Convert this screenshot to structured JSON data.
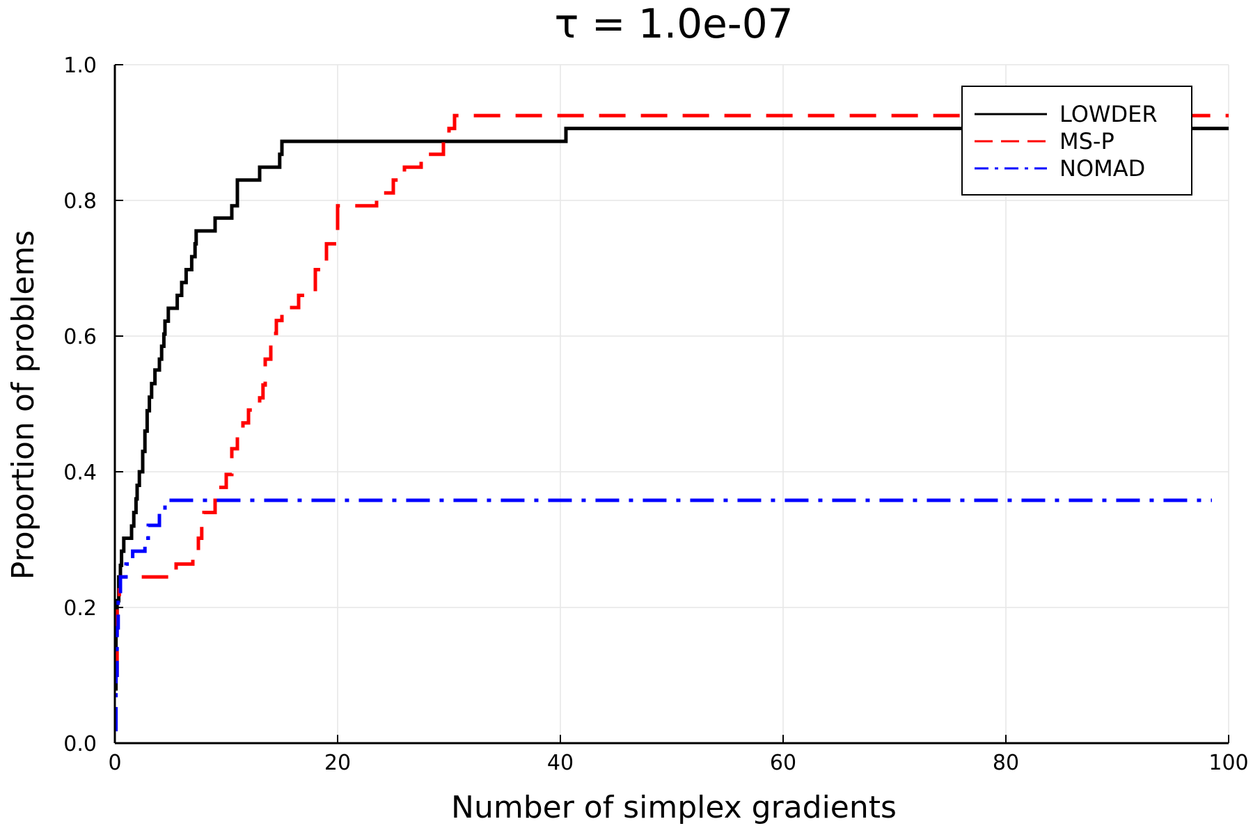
{
  "chart_data": {
    "type": "line",
    "title": "τ = 1.0e-07",
    "xlabel": "Number of simplex gradients",
    "ylabel": "Proportion of problems",
    "xlim": [
      0,
      100
    ],
    "ylim": [
      0,
      1
    ],
    "xticks": [
      0,
      20,
      40,
      60,
      80,
      100
    ],
    "xtick_labels": [
      "0",
      "20",
      "40",
      "60",
      "80",
      "100"
    ],
    "yticks": [
      0,
      0.2,
      0.4,
      0.6,
      0.8,
      1.0
    ],
    "ytick_labels": [
      "0.0",
      "0.2",
      "0.4",
      "0.6",
      "0.8",
      "1.0"
    ],
    "grid": true,
    "legend_position": "top-right",
    "series": [
      {
        "name": "LOWDER",
        "color": "#000000",
        "dash": "solid",
        "x": [
          0,
          0.1,
          0.2,
          0.35,
          0.5,
          0.6,
          0.8,
          1.0,
          1.5,
          1.7,
          1.9,
          2.0,
          2.2,
          2.5,
          2.7,
          2.9,
          3.1,
          3.3,
          3.6,
          4.0,
          4.2,
          4.4,
          4.5,
          4.8,
          5.0,
          5.6,
          6.0,
          6.4,
          6.9,
          7.2,
          7.3,
          8.0,
          9.0,
          10.0,
          10.5,
          11.0,
          12.7,
          13.0,
          14.5,
          14.8,
          15.0,
          30.0,
          40.5,
          100
        ],
        "y": [
          0.08,
          0.17,
          0.21,
          0.245,
          0.262,
          0.283,
          0.302,
          0.302,
          0.32,
          0.34,
          0.36,
          0.38,
          0.4,
          0.43,
          0.46,
          0.49,
          0.51,
          0.53,
          0.55,
          0.566,
          0.585,
          0.603,
          0.622,
          0.641,
          0.641,
          0.66,
          0.679,
          0.698,
          0.717,
          0.736,
          0.755,
          0.755,
          0.774,
          0.774,
          0.792,
          0.83,
          0.83,
          0.849,
          0.849,
          0.868,
          0.887,
          0.887,
          0.906,
          0.906
        ]
      },
      {
        "name": "MS-P",
        "color": "#ff0000",
        "dash": "dashed",
        "x": [
          0,
          0.2,
          0.4,
          0.5,
          4.0,
          5.5,
          6.5,
          7.0,
          7.5,
          7.8,
          8.0,
          9.0,
          9.5,
          10.0,
          10.5,
          11.0,
          11.5,
          12.0,
          13.0,
          13.3,
          13.5,
          14.0,
          14.5,
          15.0,
          16.5,
          17.0,
          18.0,
          19.0,
          19.5,
          20.0,
          23.0,
          23.5,
          25.0,
          26.0,
          27.5,
          29.0,
          29.5,
          30.0,
          30.5,
          100
        ],
        "y": [
          0.1,
          0.2,
          0.226,
          0.245,
          0.245,
          0.264,
          0.264,
          0.283,
          0.302,
          0.321,
          0.34,
          0.377,
          0.377,
          0.396,
          0.434,
          0.453,
          0.472,
          0.491,
          0.509,
          0.528,
          0.566,
          0.604,
          0.623,
          0.642,
          0.66,
          0.66,
          0.698,
          0.736,
          0.736,
          0.792,
          0.792,
          0.811,
          0.83,
          0.849,
          0.868,
          0.868,
          0.887,
          0.906,
          0.925,
          0.925
        ]
      },
      {
        "name": "NOMAD",
        "color": "#0000ff",
        "dash": "dashdot",
        "x": [
          0,
          0.1,
          0.2,
          0.3,
          0.5,
          0.9,
          1.0,
          1.6,
          2.5,
          2.7,
          3.0,
          3.5,
          4.0,
          4.2,
          4.5,
          98.5
        ],
        "y": [
          0.02,
          0.1,
          0.17,
          0.21,
          0.245,
          0.245,
          0.264,
          0.283,
          0.283,
          0.302,
          0.321,
          0.321,
          0.34,
          0.34,
          0.358,
          0.358
        ]
      }
    ]
  }
}
